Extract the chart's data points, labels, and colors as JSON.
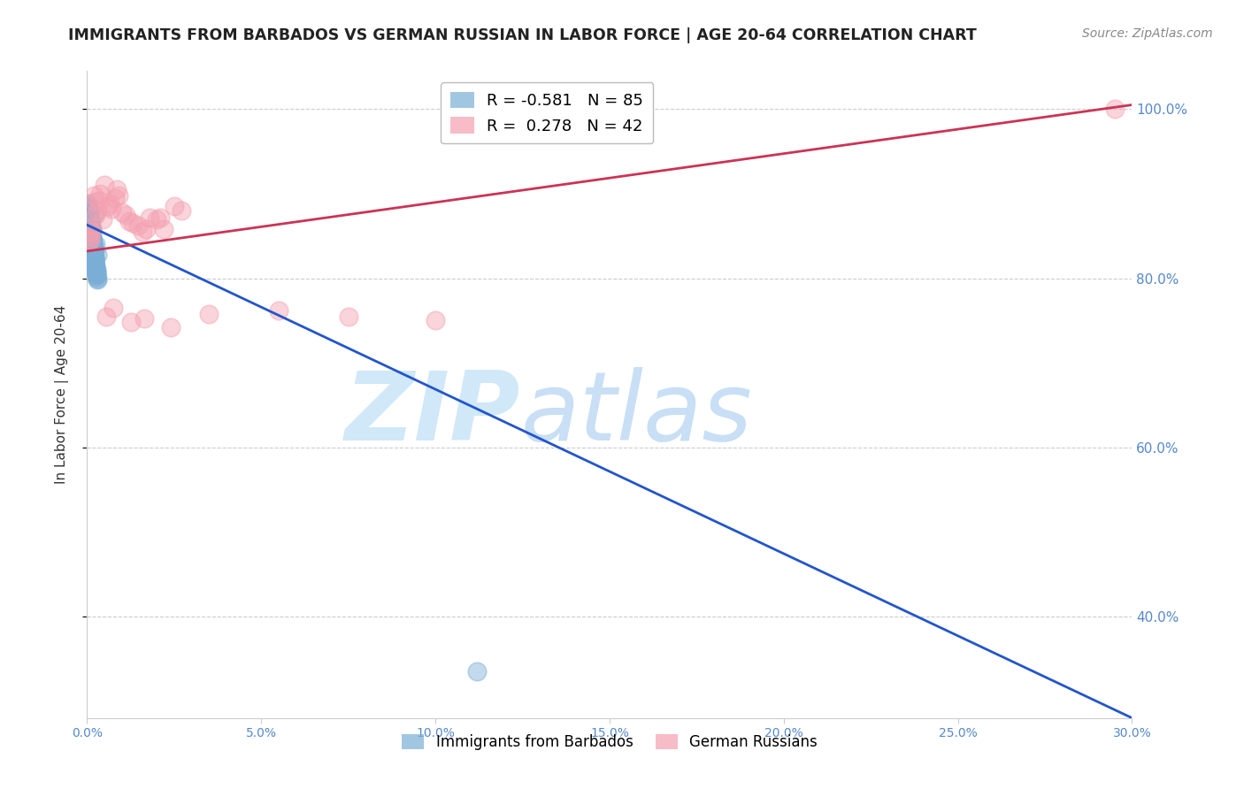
{
  "title": "IMMIGRANTS FROM BARBADOS VS GERMAN RUSSIAN IN LABOR FORCE | AGE 20-64 CORRELATION CHART",
  "source": "Source: ZipAtlas.com",
  "ylabel": "In Labor Force | Age 20-64",
  "xmin": 0.0,
  "xmax": 0.3,
  "ymin": 0.28,
  "ymax": 1.045,
  "barbados_R": -0.581,
  "barbados_N": 85,
  "german_R": 0.278,
  "german_N": 42,
  "barbados_color": "#7aaed6",
  "german_color": "#f4a0b0",
  "barbados_trend_color": "#2255cc",
  "german_trend_color": "#cc3355",
  "watermark_zip": "ZIP",
  "watermark_atlas": "atlas",
  "watermark_color": "#d0e8f8",
  "legend_label_1": "Immigrants from Barbados",
  "legend_label_2": "German Russians",
  "barbados_x": [
    0.0005,
    0.001,
    0.0008,
    0.0015,
    0.0012,
    0.0018,
    0.0022,
    0.0025,
    0.003,
    0.001,
    0.0006,
    0.0009,
    0.0014,
    0.002,
    0.0016,
    0.0024,
    0.0028,
    0.0007,
    0.0011,
    0.0013,
    0.0004,
    0.0017,
    0.0021,
    0.0026,
    0.0008,
    0.0019,
    0.0023,
    0.0005,
    0.0015,
    0.001,
    0.0003,
    0.0012,
    0.0027,
    0.0009,
    0.0016,
    0.0006,
    0.002,
    0.0014,
    0.0018,
    0.0022,
    0.0007,
    0.0011,
    0.0025,
    0.0029,
    0.0004,
    0.0013,
    0.0017,
    0.0008,
    0.0021,
    0.0019,
    0.0002,
    0.001,
    0.0015,
    0.0005,
    0.0023,
    0.0028,
    0.0001,
    0.0016,
    0.0024,
    0.003,
    0.0009,
    0.0014,
    0.0018,
    0.0006,
    0.002,
    0.0025,
    0.0012,
    0.0003,
    0.0022,
    0.0007,
    0.0026,
    0.0011,
    0.0017,
    0.0013,
    0.0008,
    0.0019,
    0.0004,
    0.0027,
    0.0021,
    0.0016,
    0.001,
    0.0015,
    0.0005,
    0.0023,
    0.112
  ],
  "barbados_y": [
    0.855,
    0.862,
    0.87,
    0.858,
    0.845,
    0.875,
    0.832,
    0.84,
    0.828,
    0.865,
    0.878,
    0.85,
    0.835,
    0.82,
    0.842,
    0.815,
    0.81,
    0.872,
    0.86,
    0.848,
    0.88,
    0.838,
    0.825,
    0.808,
    0.868,
    0.83,
    0.818,
    0.876,
    0.852,
    0.862,
    0.882,
    0.845,
    0.805,
    0.866,
    0.835,
    0.874,
    0.828,
    0.848,
    0.838,
    0.822,
    0.87,
    0.858,
    0.812,
    0.8,
    0.884,
    0.842,
    0.832,
    0.868,
    0.82,
    0.83,
    0.886,
    0.856,
    0.846,
    0.878,
    0.815,
    0.802,
    0.888,
    0.838,
    0.812,
    0.798,
    0.864,
    0.844,
    0.834,
    0.876,
    0.826,
    0.808,
    0.85,
    0.882,
    0.818,
    0.872,
    0.806,
    0.856,
    0.836,
    0.846,
    0.866,
    0.828,
    0.88,
    0.804,
    0.822,
    0.84,
    0.86,
    0.844,
    0.876,
    0.814,
    0.335
  ],
  "german_x": [
    0.0008,
    0.0015,
    0.0025,
    0.0035,
    0.005,
    0.007,
    0.009,
    0.012,
    0.016,
    0.02,
    0.025,
    0.0018,
    0.003,
    0.0045,
    0.0065,
    0.0085,
    0.011,
    0.0145,
    0.018,
    0.022,
    0.001,
    0.0022,
    0.0038,
    0.006,
    0.008,
    0.01,
    0.013,
    0.017,
    0.021,
    0.027,
    0.0055,
    0.0075,
    0.0125,
    0.0165,
    0.024,
    0.035,
    0.055,
    0.075,
    0.1,
    0.0005,
    0.0012,
    0.295
  ],
  "german_y": [
    0.845,
    0.86,
    0.875,
    0.892,
    0.91,
    0.882,
    0.898,
    0.868,
    0.855,
    0.87,
    0.885,
    0.898,
    0.88,
    0.87,
    0.888,
    0.905,
    0.875,
    0.862,
    0.872,
    0.858,
    0.85,
    0.89,
    0.9,
    0.885,
    0.895,
    0.878,
    0.865,
    0.858,
    0.872,
    0.88,
    0.755,
    0.765,
    0.748,
    0.752,
    0.742,
    0.758,
    0.762,
    0.755,
    0.75,
    0.845,
    0.855,
    1.0
  ],
  "barbados_trend_x0": 0.0,
  "barbados_trend_y0": 0.863,
  "barbados_trend_x1": 0.3,
  "barbados_trend_y1": 0.28,
  "german_trend_x0": 0.0,
  "german_trend_y0": 0.832,
  "german_trend_x1": 0.3,
  "german_trend_y1": 1.005
}
